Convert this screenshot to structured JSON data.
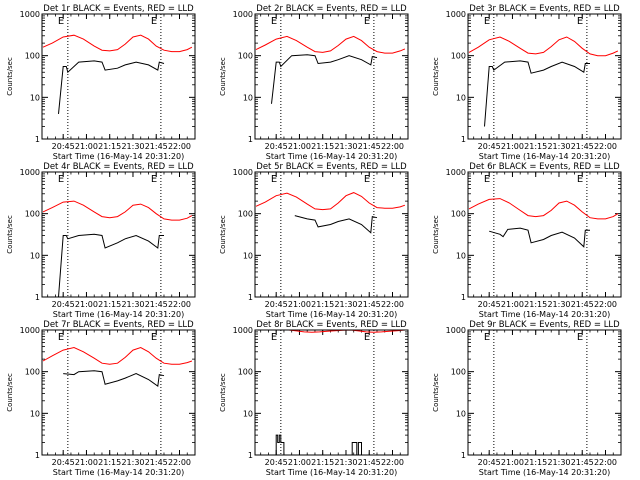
{
  "chart_data": [
    {
      "type": "line",
      "title": "Det 1r BLACK = Events, RED = LLD",
      "xlabel": "Start Time (16-May-14 20:31:20)",
      "ylabel": "Counts/sec",
      "y_scale": "log",
      "ylim": [
        1,
        1000
      ],
      "ytick_labels": [
        "1",
        "10",
        "100",
        "1000"
      ],
      "xlim": [
        "20:31:20",
        "22:10:00"
      ],
      "xtick_labels": [
        "20:45",
        "21:00",
        "21:15",
        "21:30",
        "21:45",
        "22:00"
      ],
      "markers": [
        {
          "label": "E",
          "time": "20:48"
        },
        {
          "label": "E",
          "time": "21:48"
        }
      ],
      "colors": {
        "events": "#000000",
        "lld": "#ff0000"
      },
      "series": [
        {
          "name": "Events",
          "x": [
            "20:34",
            "20:42",
            "20:42",
            "20:45",
            "20:47",
            "20:48",
            "20:55",
            "21:05",
            "21:10",
            "21:12",
            "21:20",
            "21:25",
            "21:32",
            "21:40",
            "21:46",
            "21:47",
            "21:50",
            "21:51"
          ],
          "y": [
            null,
            null,
            4,
            55,
            55,
            40,
            70,
            75,
            70,
            45,
            50,
            60,
            70,
            60,
            45,
            70,
            65,
            null
          ]
        },
        {
          "name": "LLD",
          "x": [
            "20:32",
            "20:38",
            "20:45",
            "20:52",
            "20:58",
            "21:05",
            "21:10",
            "21:15",
            "21:20",
            "21:25",
            "21:30",
            "21:35",
            "21:40",
            "21:45",
            "21:50",
            "21:55",
            "22:00",
            "22:05",
            "22:08"
          ],
          "y": [
            160,
            200,
            280,
            310,
            250,
            170,
            135,
            130,
            140,
            190,
            280,
            310,
            250,
            170,
            135,
            125,
            125,
            140,
            160
          ]
        }
      ]
    },
    {
      "type": "line",
      "title": "Det 2r BLACK = Events, RED = LLD",
      "xlabel": "Start Time (16-May-14 20:31:20)",
      "ylabel": "Counts/sec",
      "y_scale": "log",
      "ylim": [
        1,
        1000
      ],
      "ytick_labels": [
        "1",
        "10",
        "100",
        "1000"
      ],
      "xlim": [
        "20:31:20",
        "22:10:00"
      ],
      "xtick_labels": [
        "20:45",
        "21:00",
        "21:15",
        "21:30",
        "21:45",
        "22:00"
      ],
      "markers": [
        {
          "label": "E",
          "time": "20:48"
        },
        {
          "label": "E",
          "time": "21:48"
        }
      ],
      "colors": {
        "events": "#000000",
        "lld": "#ff0000"
      },
      "series": [
        {
          "name": "Events",
          "x": [
            "20:34",
            "20:42",
            "20:42",
            "20:45",
            "20:47",
            "20:48",
            "20:55",
            "21:05",
            "21:10",
            "21:12",
            "21:20",
            "21:25",
            "21:32",
            "21:40",
            "21:46",
            "21:47",
            "21:50",
            "21:51"
          ],
          "y": [
            null,
            null,
            7,
            70,
            70,
            55,
            100,
            105,
            100,
            65,
            70,
            80,
            100,
            80,
            60,
            95,
            90,
            null
          ]
        },
        {
          "name": "LLD",
          "x": [
            "20:32",
            "20:38",
            "20:45",
            "20:52",
            "20:58",
            "21:05",
            "21:10",
            "21:15",
            "21:20",
            "21:25",
            "21:30",
            "21:35",
            "21:40",
            "21:45",
            "21:50",
            "21:55",
            "22:00",
            "22:05",
            "22:08"
          ],
          "y": [
            140,
            180,
            250,
            290,
            230,
            160,
            125,
            120,
            130,
            175,
            250,
            290,
            230,
            160,
            125,
            115,
            115,
            130,
            145
          ]
        }
      ]
    },
    {
      "type": "line",
      "title": "Det 3r BLACK = Events, RED = LLD",
      "xlabel": "Start Time (16-May-14 20:31:20)",
      "ylabel": "Counts/sec",
      "y_scale": "log",
      "ylim": [
        1,
        1000
      ],
      "ytick_labels": [
        "1",
        "10",
        "100",
        "1000"
      ],
      "xlim": [
        "20:31:20",
        "22:10:00"
      ],
      "xtick_labels": [
        "20:45",
        "21:00",
        "21:15",
        "21:30",
        "21:45",
        "22:00"
      ],
      "markers": [
        {
          "label": "E",
          "time": "20:48"
        },
        {
          "label": "E",
          "time": "21:48"
        }
      ],
      "colors": {
        "events": "#000000",
        "lld": "#ff0000"
      },
      "series": [
        {
          "name": "Events",
          "x": [
            "20:34",
            "20:42",
            "20:42",
            "20:45",
            "20:47",
            "20:48",
            "20:55",
            "21:05",
            "21:10",
            "21:12",
            "21:20",
            "21:25",
            "21:32",
            "21:40",
            "21:46",
            "21:47",
            "21:50",
            "21:51"
          ],
          "y": [
            null,
            null,
            2,
            55,
            55,
            45,
            70,
            75,
            70,
            38,
            45,
            55,
            70,
            55,
            40,
            65,
            65,
            null
          ]
        },
        {
          "name": "LLD",
          "x": [
            "20:32",
            "20:38",
            "20:45",
            "20:52",
            "20:58",
            "21:05",
            "21:10",
            "21:15",
            "21:20",
            "21:25",
            "21:30",
            "21:35",
            "21:40",
            "21:45",
            "21:50",
            "21:55",
            "22:00",
            "22:05",
            "22:08"
          ],
          "y": [
            120,
            160,
            240,
            280,
            220,
            150,
            115,
            110,
            120,
            165,
            240,
            280,
            220,
            150,
            110,
            100,
            100,
            115,
            130
          ]
        }
      ]
    },
    {
      "type": "line",
      "title": "Det 4r BLACK = Events, RED = LLD",
      "xlabel": "Start Time (16-May-14 20:31:20)",
      "ylabel": "Counts/sec",
      "y_scale": "log",
      "ylim": [
        1,
        1000
      ],
      "ytick_labels": [
        "1",
        "10",
        "100",
        "1000"
      ],
      "xlim": [
        "20:31:20",
        "22:10:00"
      ],
      "xtick_labels": [
        "20:45",
        "21:00",
        "21:15",
        "21:30",
        "21:45",
        "22:00"
      ],
      "markers": [
        {
          "label": "E",
          "time": "20:48"
        },
        {
          "label": "E",
          "time": "21:48"
        }
      ],
      "colors": {
        "events": "#000000",
        "lld": "#ff0000"
      },
      "series": [
        {
          "name": "Events",
          "x": [
            "20:34",
            "20:42",
            "20:42",
            "20:45",
            "20:47",
            "20:48",
            "20:55",
            "21:05",
            "21:10",
            "21:12",
            "21:20",
            "21:25",
            "21:32",
            "21:40",
            "21:46",
            "21:47",
            "21:50",
            "21:51"
          ],
          "y": [
            null,
            null,
            1,
            30,
            30,
            25,
            30,
            32,
            30,
            15,
            20,
            25,
            30,
            22,
            15,
            30,
            30,
            null
          ]
        },
        {
          "name": "LLD",
          "x": [
            "20:32",
            "20:38",
            "20:45",
            "20:52",
            "20:58",
            "21:05",
            "21:10",
            "21:15",
            "21:20",
            "21:25",
            "21:30",
            "21:35",
            "21:40",
            "21:45",
            "21:50",
            "21:55",
            "22:00",
            "22:05",
            "22:08"
          ],
          "y": [
            110,
            140,
            190,
            200,
            160,
            110,
            85,
            80,
            85,
            110,
            160,
            170,
            140,
            100,
            75,
            70,
            70,
            78,
            90
          ]
        }
      ]
    },
    {
      "type": "line",
      "title": "Det 5r BLACK = Events, RED = LLD",
      "xlabel": "Start Time (16-May-14 20:31:20)",
      "ylabel": "Counts/sec",
      "y_scale": "log",
      "ylim": [
        1,
        1000
      ],
      "ytick_labels": [
        "1",
        "10",
        "100",
        "1000"
      ],
      "xlim": [
        "20:31:20",
        "22:10:00"
      ],
      "xtick_labels": [
        "20:45",
        "21:00",
        "21:15",
        "21:30",
        "21:45",
        "22:00"
      ],
      "markers": [
        {
          "label": "E",
          "time": "20:48"
        },
        {
          "label": "E",
          "time": "21:48"
        }
      ],
      "colors": {
        "events": "#000000",
        "lld": "#ff0000"
      },
      "series": [
        {
          "name": "Events",
          "x": [
            "20:57",
            "20:57",
            "21:05",
            "21:10",
            "21:12",
            "21:20",
            "21:25",
            "21:32",
            "21:40",
            "21:46",
            "21:47",
            "21:50",
            "21:51"
          ],
          "y": [
            null,
            90,
            75,
            70,
            48,
            55,
            65,
            75,
            55,
            35,
            85,
            80,
            null
          ]
        },
        {
          "name": "LLD",
          "x": [
            "20:32",
            "20:38",
            "20:45",
            "20:52",
            "20:58",
            "21:05",
            "21:10",
            "21:15",
            "21:20",
            "21:25",
            "21:30",
            "21:35",
            "21:40",
            "21:45",
            "21:50",
            "21:55",
            "22:00",
            "22:05",
            "22:08"
          ],
          "y": [
            150,
            190,
            270,
            310,
            250,
            170,
            130,
            125,
            130,
            180,
            270,
            320,
            260,
            180,
            140,
            135,
            135,
            145,
            160
          ]
        }
      ]
    },
    {
      "type": "line",
      "title": "Det 6r BLACK = Events, RED = LLD",
      "xlabel": "Start Time (16-May-14 20:31:20)",
      "ylabel": "Counts/sec",
      "y_scale": "log",
      "ylim": [
        1,
        1000
      ],
      "ytick_labels": [
        "1",
        "10",
        "100",
        "1000"
      ],
      "xlim": [
        "20:31:20",
        "22:10:00"
      ],
      "xtick_labels": [
        "20:45",
        "21:00",
        "21:15",
        "21:30",
        "21:45",
        "22:00"
      ],
      "markers": [
        {
          "label": "E",
          "time": "20:48"
        },
        {
          "label": "E",
          "time": "21:48"
        }
      ],
      "colors": {
        "events": "#000000",
        "lld": "#ff0000"
      },
      "series": [
        {
          "name": "Events",
          "x": [
            "20:45",
            "20:45",
            "20:52",
            "20:54",
            "20:57",
            "21:05",
            "21:10",
            "21:12",
            "21:20",
            "21:25",
            "21:32",
            "21:40",
            "21:46",
            "21:47",
            "21:50",
            "21:51"
          ],
          "y": [
            null,
            38,
            32,
            28,
            42,
            45,
            40,
            20,
            24,
            30,
            36,
            26,
            16,
            40,
            40,
            null
          ]
        },
        {
          "name": "LLD",
          "x": [
            "20:32",
            "20:38",
            "20:45",
            "20:52",
            "20:58",
            "21:05",
            "21:10",
            "21:15",
            "21:20",
            "21:25",
            "21:30",
            "21:35",
            "21:40",
            "21:45",
            "21:50",
            "21:55",
            "22:00",
            "22:05",
            "22:08"
          ],
          "y": [
            130,
            170,
            220,
            230,
            180,
            120,
            90,
            85,
            90,
            120,
            180,
            200,
            160,
            110,
            80,
            75,
            75,
            85,
            100
          ]
        }
      ]
    },
    {
      "type": "line",
      "title": "Det 7r BLACK = Events, RED = LLD",
      "xlabel": "Start Time (16-May-14 20:31:20)",
      "ylabel": "Counts/sec",
      "y_scale": "log",
      "ylim": [
        1,
        1000
      ],
      "ytick_labels": [
        "1",
        "10",
        "100",
        "1000"
      ],
      "xlim": [
        "20:31:20",
        "22:10:00"
      ],
      "xtick_labels": [
        "20:45",
        "21:00",
        "21:15",
        "21:30",
        "21:45",
        "22:00"
      ],
      "markers": [
        {
          "label": "E",
          "time": "20:48"
        },
        {
          "label": "E",
          "time": "21:48"
        }
      ],
      "colors": {
        "events": "#000000",
        "lld": "#ff0000"
      },
      "series": [
        {
          "name": "Events",
          "x": [
            "20:45",
            "20:45",
            "20:52",
            "20:55",
            "21:05",
            "21:10",
            "21:12",
            "21:20",
            "21:25",
            "21:32",
            "21:40",
            "21:46",
            "21:47",
            "21:50",
            "21:51"
          ],
          "y": [
            null,
            90,
            85,
            100,
            105,
            100,
            50,
            60,
            70,
            90,
            65,
            45,
            85,
            80,
            null
          ]
        },
        {
          "name": "LLD",
          "x": [
            "20:32",
            "20:38",
            "20:45",
            "20:52",
            "20:58",
            "21:05",
            "21:10",
            "21:15",
            "21:20",
            "21:25",
            "21:30",
            "21:35",
            "21:40",
            "21:45",
            "21:50",
            "21:55",
            "22:00",
            "22:05",
            "22:08"
          ],
          "y": [
            180,
            240,
            330,
            380,
            300,
            210,
            160,
            150,
            160,
            220,
            330,
            380,
            300,
            210,
            160,
            150,
            150,
            165,
            180
          ]
        }
      ]
    },
    {
      "type": "line",
      "title": "Det 8r BLACK = Events, RED = LLD",
      "xlabel": "Start Time (16-May-14 20:31:20)",
      "ylabel": "Counts/sec",
      "y_scale": "log",
      "ylim": [
        1,
        1000
      ],
      "ytick_labels": [
        "1",
        "10",
        "100",
        "1000"
      ],
      "xlim": [
        "20:31:20",
        "22:10:00"
      ],
      "xtick_labels": [
        "20:45",
        "21:00",
        "21:15",
        "21:30",
        "21:45",
        "22:00"
      ],
      "markers": [
        {
          "label": "E",
          "time": "20:48"
        },
        {
          "label": "E",
          "time": "21:48"
        }
      ],
      "colors": {
        "events": "#000000",
        "lld": "#ff0000"
      },
      "series": [
        {
          "name": "Events",
          "x": [
            "20:45",
            "20:45",
            "20:46",
            "20:46",
            "20:47",
            "20:47",
            "20:48",
            "20:48",
            "20:49",
            "20:49",
            "20:50",
            "20:50",
            "21:34",
            "21:34",
            "21:37",
            "21:37",
            "21:38",
            "21:38",
            "21:40",
            "21:40"
          ],
          "y": [
            1,
            3,
            3,
            2,
            2,
            3,
            3,
            2,
            2,
            2,
            2,
            1,
            1,
            2,
            2,
            1,
            1,
            2,
            2,
            1
          ]
        },
        {
          "name": "LLD",
          "x": [
            "20:53",
            "20:58",
            "21:03",
            "21:08",
            "21:13",
            "21:18",
            "21:23",
            "21:28",
            "21:33",
            "21:38",
            "21:43",
            "21:48",
            "21:53",
            "21:58",
            "22:03",
            "22:08"
          ],
          "y": [
            1000,
            950,
            900,
            880,
            900,
            930,
            960,
            990,
            1000,
            950,
            900,
            880,
            900,
            930,
            960,
            1000
          ]
        }
      ]
    },
    {
      "type": "line",
      "title": "Det 9r BLACK = Events, RED = LLD",
      "xlabel": "Start Time (16-May-14 20:31:20)",
      "ylabel": "Counts/sec",
      "y_scale": "log",
      "ylim": [
        1,
        1000
      ],
      "ytick_labels": [
        "1",
        "10",
        "100",
        "1000"
      ],
      "xlim": [
        "20:31:20",
        "22:10:00"
      ],
      "xtick_labels": [
        "20:45",
        "21:00",
        "21:15",
        "21:30",
        "21:45",
        "22:00"
      ],
      "markers": [
        {
          "label": "E",
          "time": "20:48"
        },
        {
          "label": "E",
          "time": "21:48"
        }
      ],
      "colors": {
        "events": "#000000",
        "lld": "#ff0000"
      },
      "series": []
    }
  ]
}
